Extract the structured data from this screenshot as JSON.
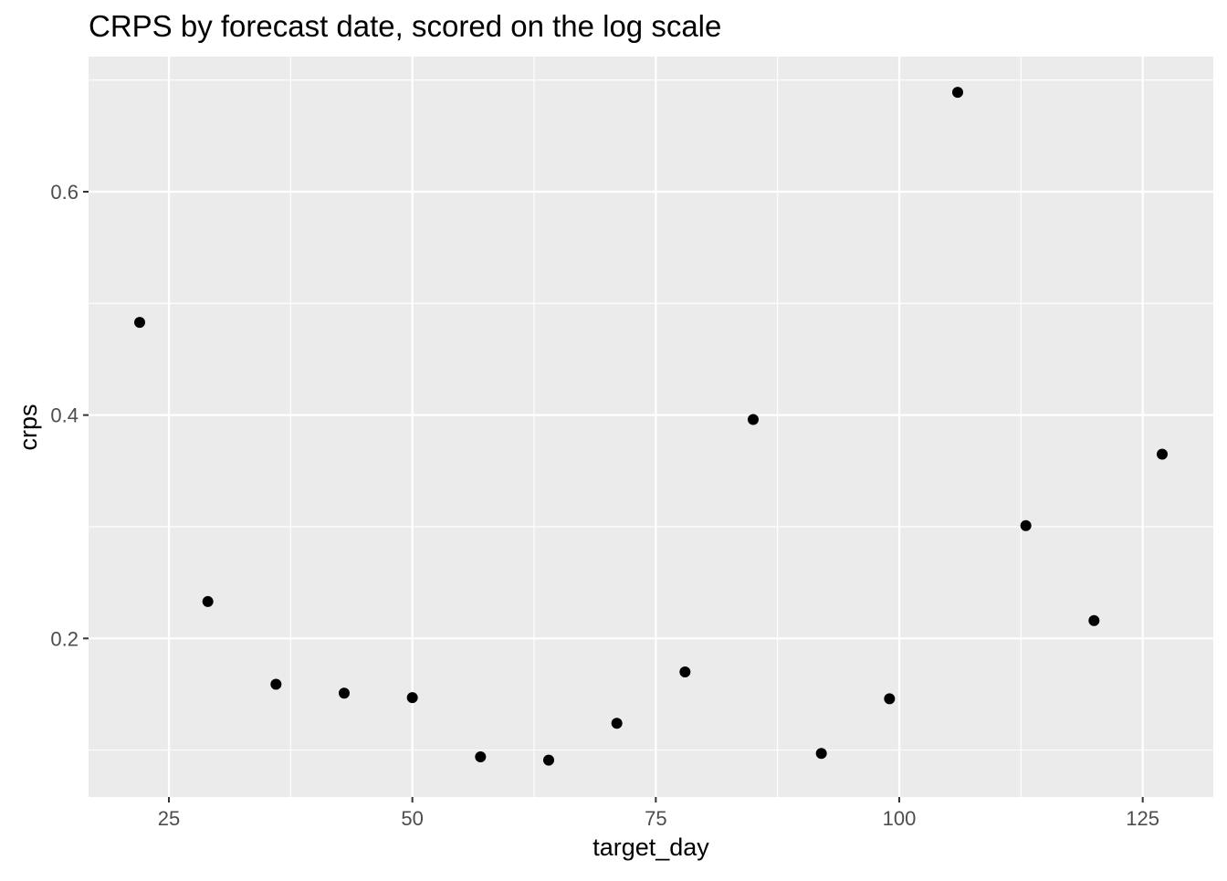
{
  "chart_data": {
    "type": "scatter",
    "title": "CRPS by forecast date, scored on the log scale",
    "xlabel": "target_day",
    "ylabel": "crps",
    "xlim": [
      16.75,
      132.25
    ],
    "ylim": [
      0.058,
      0.721
    ],
    "x_ticks": [
      25,
      50,
      75,
      100,
      125
    ],
    "x_tick_labels": [
      "25",
      "50",
      "75",
      "100",
      "125"
    ],
    "y_ticks": [
      0.2,
      0.4,
      0.6
    ],
    "y_tick_labels": [
      "0.2",
      "0.4",
      "0.6"
    ],
    "grid": true,
    "points": [
      {
        "x": 22,
        "y": 0.483
      },
      {
        "x": 29,
        "y": 0.233
      },
      {
        "x": 36,
        "y": 0.159
      },
      {
        "x": 43,
        "y": 0.151
      },
      {
        "x": 50,
        "y": 0.147
      },
      {
        "x": 57,
        "y": 0.094
      },
      {
        "x": 64,
        "y": 0.091
      },
      {
        "x": 71,
        "y": 0.124
      },
      {
        "x": 78,
        "y": 0.17
      },
      {
        "x": 85,
        "y": 0.396
      },
      {
        "x": 92,
        "y": 0.097
      },
      {
        "x": 99,
        "y": 0.146
      },
      {
        "x": 106,
        "y": 0.689
      },
      {
        "x": 113,
        "y": 0.301
      },
      {
        "x": 120,
        "y": 0.216
      },
      {
        "x": 127,
        "y": 0.365
      }
    ],
    "colors": {
      "panel_background": "#ebebeb",
      "gridline": "#ffffff",
      "point": "#000000",
      "tick_label": "#4d4d4d",
      "tick_mark": "#333333"
    }
  }
}
